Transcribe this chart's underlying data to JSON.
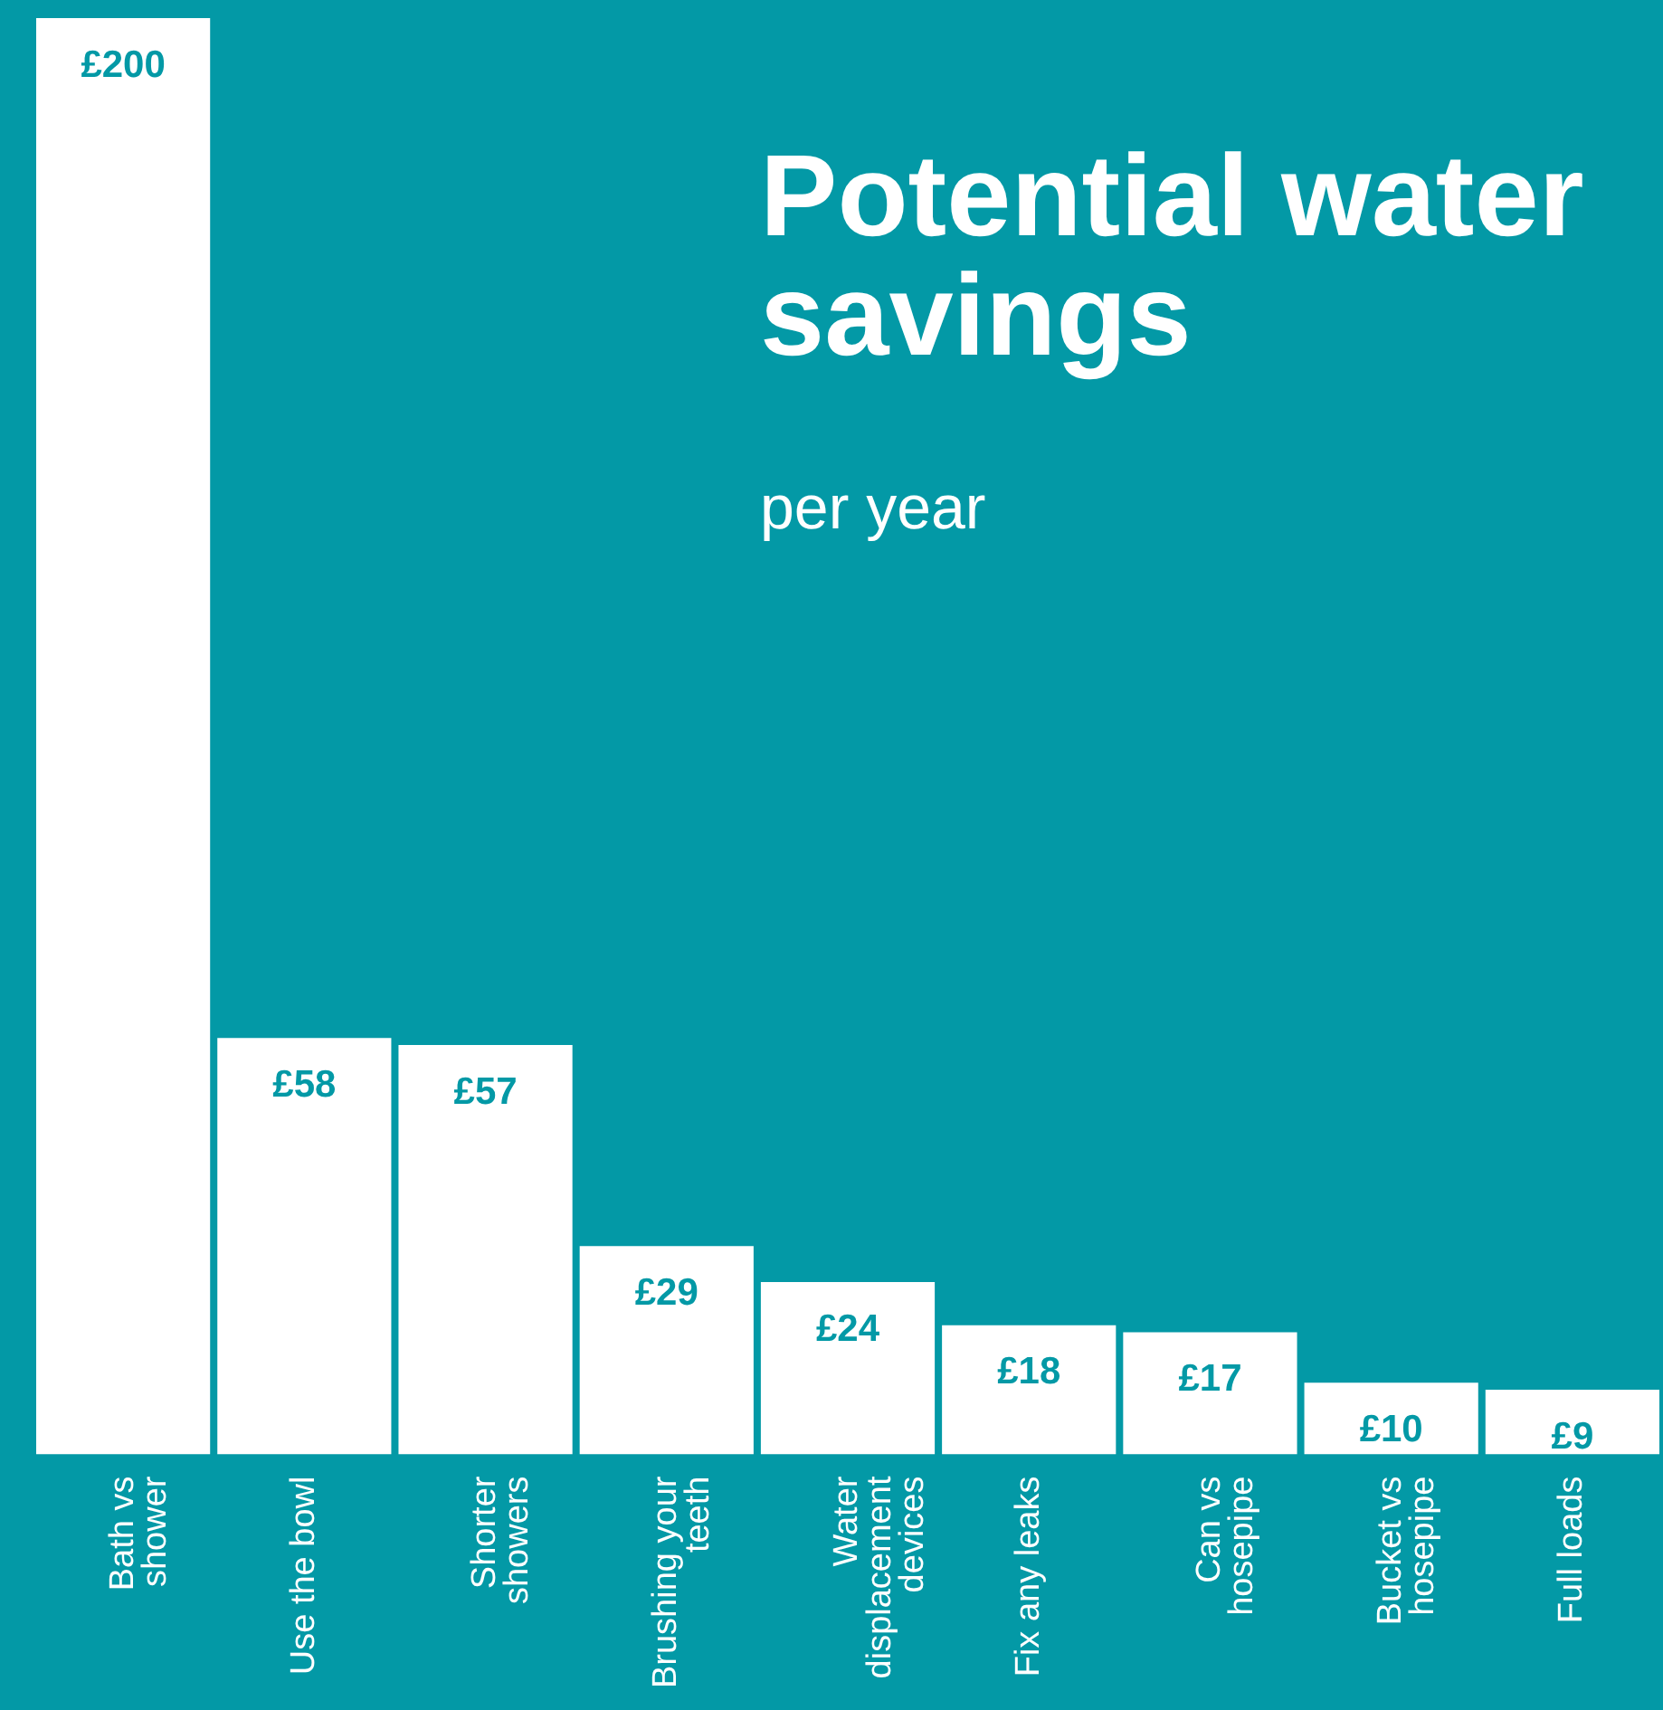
{
  "chart_data": {
    "type": "bar",
    "title": "Potential water savings",
    "subtitle": "per year",
    "categories": [
      "Bath vs shower",
      "Use the bowl",
      "Shorter showers",
      "Brushing your teeth",
      "Water displacement devices",
      "Fix any leaks",
      "Can vs hosepipe",
      "Bucket vs hosepipe",
      "Full loads"
    ],
    "values": [
      200,
      58,
      57,
      29,
      24,
      18,
      17,
      10,
      9
    ],
    "value_labels": [
      "£200",
      "£58",
      "£57",
      "£29",
      "£24",
      "£18",
      "£17",
      "£10",
      "£9"
    ],
    "color": "#ffffff",
    "grid": false,
    "legend": false
  }
}
